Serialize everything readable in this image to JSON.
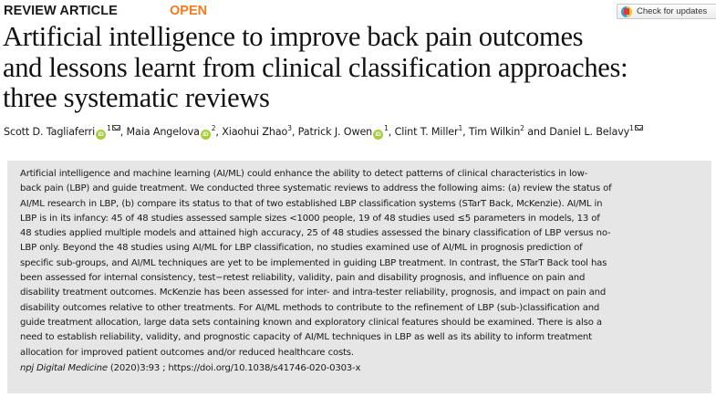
{
  "header": {
    "article_type": "REVIEW ARTICLE",
    "access_badge": "OPEN",
    "check_updates_label": "Check for updates",
    "colors": {
      "open_badge": "#f47b20",
      "orcid": "#a6ce39",
      "abstract_bg": "#e6e6e6"
    }
  },
  "title_lines": [
    "Artificial intelligence to improve back pain outcomes",
    "and lessons learnt from clinical classification approaches:",
    "three systematic reviews"
  ],
  "authors": [
    {
      "name": "Scott D. Tagliaferri",
      "orcid": true,
      "affil": "1",
      "corresponding": true
    },
    {
      "name": "Maia Angelova",
      "orcid": true,
      "affil": "2",
      "corresponding": false
    },
    {
      "name": "Xiaohui Zhao",
      "orcid": false,
      "affil": "3",
      "corresponding": false
    },
    {
      "name": "Patrick J. Owen",
      "orcid": true,
      "affil": "1",
      "corresponding": false
    },
    {
      "name": "Clint T. Miller",
      "orcid": false,
      "affil": "1",
      "corresponding": false
    },
    {
      "name": "Tim Wilkin",
      "orcid": false,
      "affil": "2",
      "corresponding": false
    },
    {
      "name": "Daniel L. Belavy",
      "orcid": false,
      "affil": "1",
      "corresponding": true
    }
  ],
  "author_separators": {
    "comma": ", ",
    "and": " and "
  },
  "orcid_glyph": "iD",
  "abstract_lines": [
    "Artificial intelligence and machine learning (AI/ML) could enhance the ability to detect patterns of clinical characteristics in low-",
    "back pain (LBP) and guide treatment. We conducted three systematic reviews to address the following aims: (a) review the status of",
    "AI/ML research in LBP, (b) compare its status to that of two established LBP classification systems (STarT Back, McKenzie). AI/ML in",
    "LBP is in its infancy: 45 of 48 studies assessed sample sizes <1000 people, 19 of 48 studies used ≤5 parameters in models, 13 of",
    "48 studies applied multiple models and attained high accuracy, 25 of 48 studies assessed the binary classification of LBP versus no-",
    "LBP only. Beyond the 48 studies using AI/ML for LBP classification, no studies examined use of AI/ML in prognosis prediction of",
    "specific sub-groups, and AI/ML techniques are yet to be implemented in guiding LBP treatment. In contrast, the STarT Back tool has",
    "been assessed for internal consistency, test−retest reliability, validity, pain and disability prognosis, and influence on pain and",
    "disability treatment outcomes. McKenzie has been assessed for inter- and intra-tester reliability, prognosis, and impact on pain and",
    "disability outcomes relative to other treatments. For AI/ML methods to contribute to the refinement of LBP (sub-)classification and",
    "guide treatment allocation, large data sets containing known and exploratory clinical features should be examined. There is also a",
    "need to establish reliability, validity, and prognostic capacity of AI/ML techniques in LBP as well as its ability to inform treatment",
    "allocation for improved patient outcomes and/or reduced healthcare costs."
  ],
  "citation": {
    "journal": "npj Digital Medicine",
    "volume_info": " (2020)3:93 ; ",
    "doi": "https://doi.org/10.1038/s41746-020-0303-x"
  }
}
